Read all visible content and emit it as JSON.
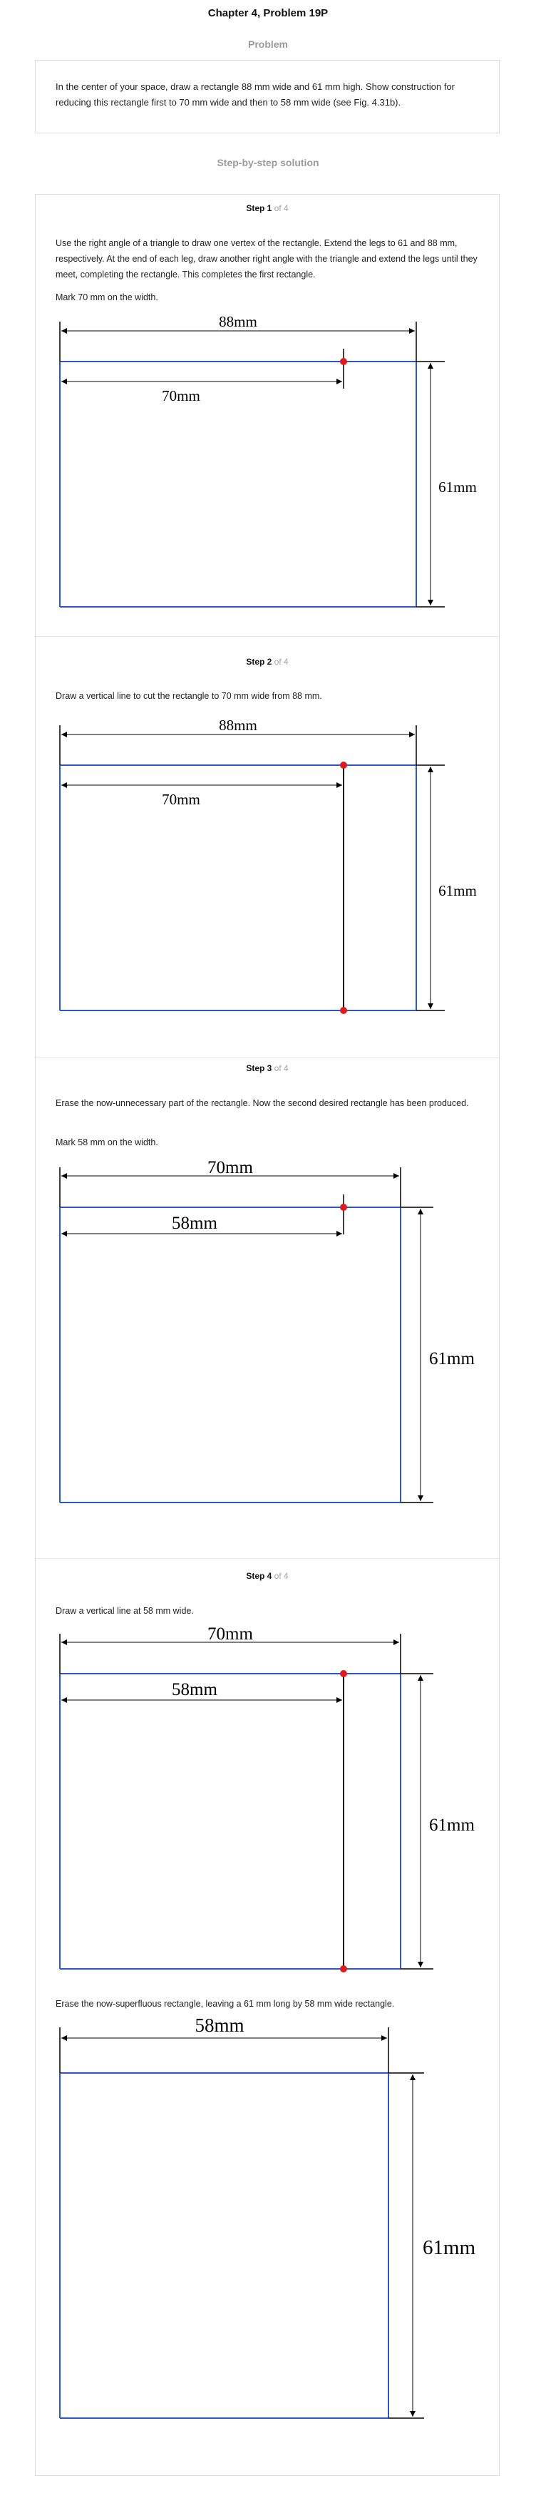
{
  "header": {
    "title": "Chapter 4, Problem 19P"
  },
  "problem": {
    "label": "Problem",
    "text": "In the center of your space, draw a rectangle 88 mm wide and 61 mm high. Show construction for reducing this rectangle first to 70 mm wide and then to 58 mm wide (see Fig. 4.31b)."
  },
  "solution": {
    "label": "Step-by-step solution",
    "steps": [
      {
        "number": "Step 1",
        "of": "of 4",
        "paragraphs": [
          "Use the right angle of a triangle to draw one vertex of the rectangle. Extend the legs to 61 and 88 mm, respectively. At the end of each leg, draw another right angle with the triangle and extend the legs until they meet, completing the rectangle. This completes the first rectangle.",
          "Mark 70 mm on the width."
        ],
        "figure": {
          "outer_width": "88mm",
          "inner_width": "70mm",
          "height": "61mm"
        }
      },
      {
        "number": "Step 2",
        "of": "of 4",
        "paragraphs": [
          "Draw a vertical line to cut the rectangle to 70 mm wide from 88 mm."
        ],
        "figure": {
          "outer_width": "88mm",
          "inner_width": "70mm",
          "height": "61mm"
        }
      },
      {
        "number": "Step 3",
        "of": "of 4",
        "paragraphs": [
          "Erase the now-unnecessary part of the rectangle. Now the second desired rectangle has been produced.",
          "Mark 58 mm on the width."
        ],
        "figure": {
          "outer_width": "70mm",
          "inner_width": "58mm",
          "height": "61mm"
        }
      },
      {
        "number": "Step 4",
        "of": "of 4",
        "paragraphs": [
          "Draw a vertical line at 58 mm wide."
        ],
        "figure": {
          "outer_width": "70mm",
          "inner_width": "58mm",
          "height": "61mm"
        },
        "paragraphs_after": [
          "Erase the now-superfluous rectangle, leaving a 61 mm long by 58 mm wide rectangle."
        ],
        "figure_final": {
          "width": "58mm",
          "height": "61mm"
        }
      }
    ]
  },
  "colors": {
    "rectangle": "#2f55c8",
    "mark": "#e01b1b",
    "dimension": "#000000"
  }
}
